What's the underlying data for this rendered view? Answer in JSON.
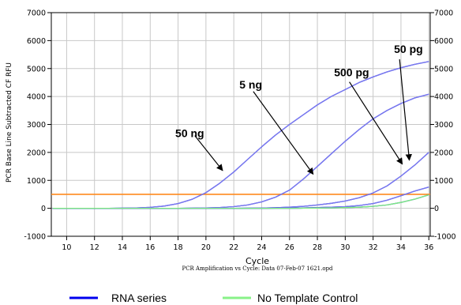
{
  "chart_data": {
    "type": "line",
    "title": "",
    "subtitle": "PCR Amplification vs Cycle: Data 07-Feb-07 1621.opd",
    "xlabel": "Cycle",
    "ylabel": "PCR Base Line Subtracted CF RFU",
    "xlim": [
      8.9,
      36.1
    ],
    "ylim": [
      -1000,
      7000
    ],
    "xticks": [
      10,
      12,
      14,
      16,
      18,
      20,
      22,
      24,
      26,
      28,
      30,
      32,
      34,
      36
    ],
    "yticks": [
      -1000,
      0,
      1000,
      2000,
      3000,
      4000,
      5000,
      6000,
      7000
    ],
    "grid": true,
    "threshold": {
      "y": 500,
      "color": "#ff8a1e"
    },
    "x": [
      9,
      10,
      11,
      12,
      13,
      14,
      15,
      16,
      17,
      18,
      19,
      20,
      21,
      22,
      23,
      24,
      25,
      26,
      27,
      28,
      29,
      30,
      31,
      32,
      33,
      34,
      35,
      36
    ],
    "series": [
      {
        "group": "RNA series",
        "color": "#7a7af0",
        "values": [
          0,
          0,
          0,
          0,
          0,
          5,
          15,
          35,
          80,
          170,
          320,
          560,
          900,
          1300,
          1750,
          2200,
          2620,
          3000,
          3350,
          3700,
          4000,
          4250,
          4500,
          4700,
          4880,
          5030,
          5150,
          5250
        ]
      },
      {
        "group": "RNA series",
        "color": "#7a7af0",
        "values": [
          0,
          0,
          0,
          0,
          0,
          0,
          0,
          0,
          0,
          0,
          5,
          15,
          30,
          60,
          120,
          230,
          400,
          650,
          1050,
          1500,
          1950,
          2400,
          2820,
          3200,
          3500,
          3750,
          3950,
          4080
        ]
      },
      {
        "group": "RNA series",
        "color": "#7a7af0",
        "values": [
          0,
          0,
          0,
          0,
          0,
          0,
          0,
          0,
          0,
          0,
          0,
          0,
          0,
          0,
          5,
          10,
          20,
          40,
          70,
          120,
          180,
          260,
          380,
          550,
          800,
          1150,
          1550,
          2000
        ]
      },
      {
        "group": "RNA series",
        "color": "#7a7af0",
        "values": [
          0,
          0,
          0,
          0,
          0,
          0,
          0,
          0,
          0,
          0,
          0,
          0,
          0,
          0,
          0,
          0,
          5,
          10,
          15,
          25,
          40,
          60,
          100,
          170,
          290,
          450,
          620,
          760
        ]
      },
      {
        "group": "No Template Control",
        "color": "#7ef07e",
        "values": [
          0,
          0,
          0,
          0,
          0,
          0,
          0,
          0,
          0,
          0,
          0,
          0,
          0,
          0,
          0,
          0,
          0,
          0,
          5,
          10,
          15,
          25,
          40,
          70,
          120,
          210,
          330,
          480
        ]
      }
    ],
    "annotations": [
      {
        "text": "50 ng",
        "x": 17.8,
        "y": 2550,
        "ax": 19.2,
        "ay": 2600,
        "tx": 21.2,
        "ty": 1350
      },
      {
        "text": "5 ng",
        "x": 22.4,
        "y": 4280,
        "ax": 23.4,
        "ay": 4180,
        "tx": 27.7,
        "ty": 1220
      },
      {
        "text": "500 pg",
        "x": 29.2,
        "y": 4720,
        "ax": 30.3,
        "ay": 4520,
        "tx": 34.1,
        "ty": 1580
      },
      {
        "text": "50 pg",
        "x": 33.5,
        "y": 5560,
        "ax": 33.9,
        "ay": 5330,
        "tx": 34.6,
        "ty": 1720
      }
    ],
    "legend": [
      {
        "label": "RNA series",
        "color": "#0000ee"
      },
      {
        "label": "No Template Control",
        "color": "#88f288"
      }
    ]
  }
}
